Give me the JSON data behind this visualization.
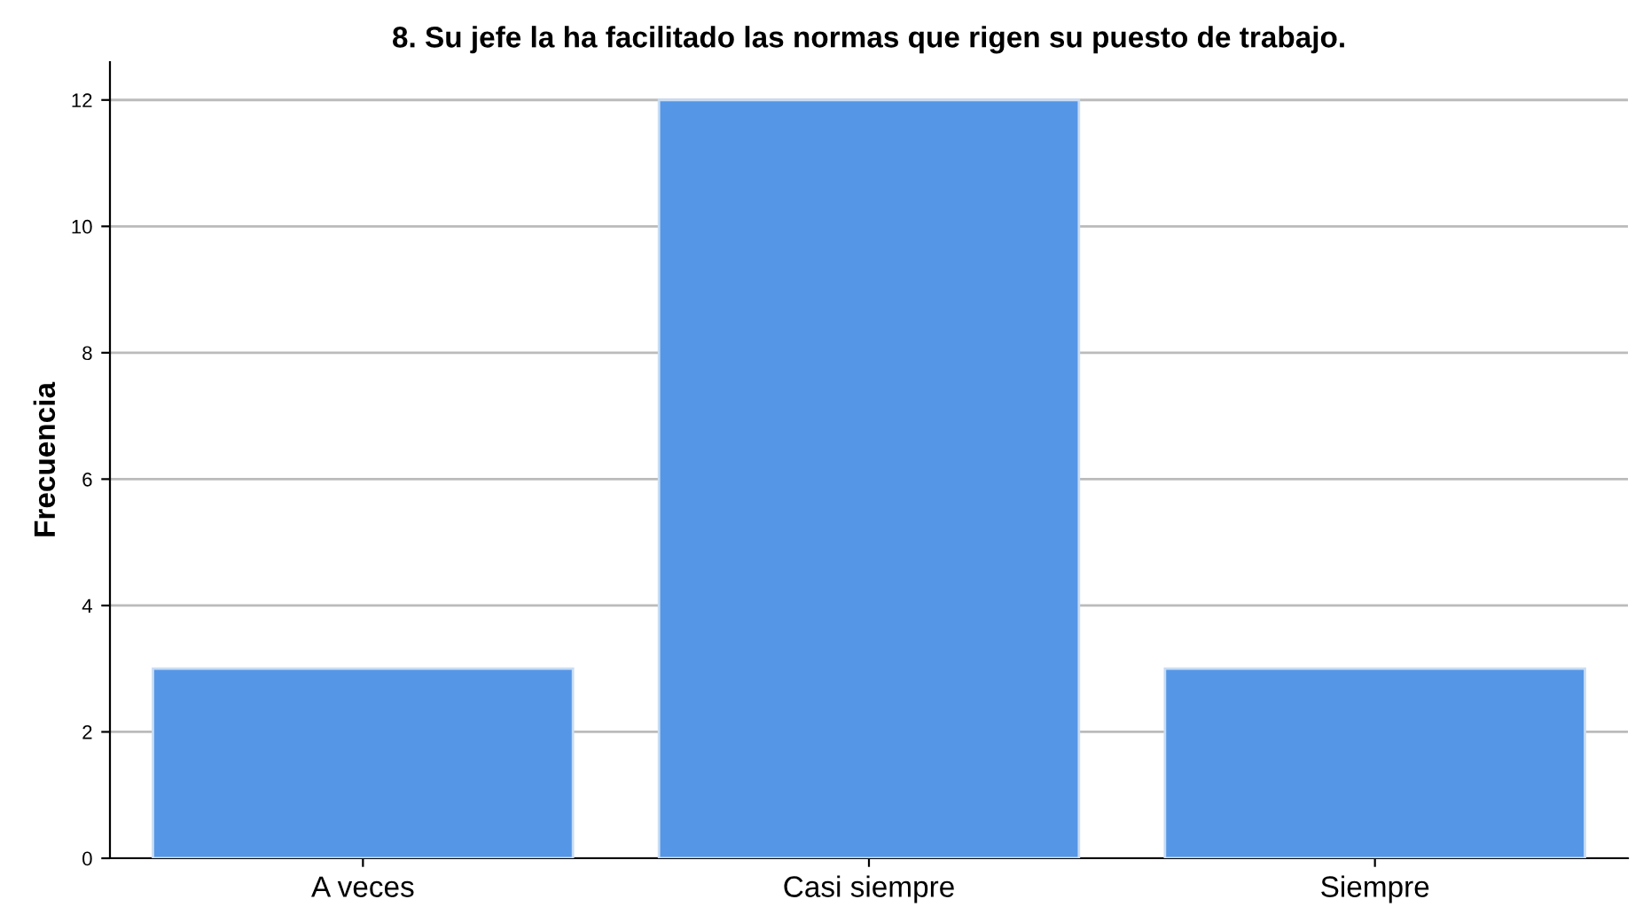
{
  "chart_data": {
    "type": "bar",
    "title": "8. Su jefe la ha facilitado las normas que rigen su puesto de trabajo.",
    "ylabel": "Frecuencia",
    "categories": [
      "A veces",
      "Casi siempre",
      "Siempre"
    ],
    "values": [
      3,
      12,
      3
    ],
    "color": "#5596e6",
    "ylim": [
      0,
      12.6
    ],
    "yticks": [
      0,
      2,
      4,
      6,
      8,
      10,
      12
    ],
    "grid": "y"
  }
}
